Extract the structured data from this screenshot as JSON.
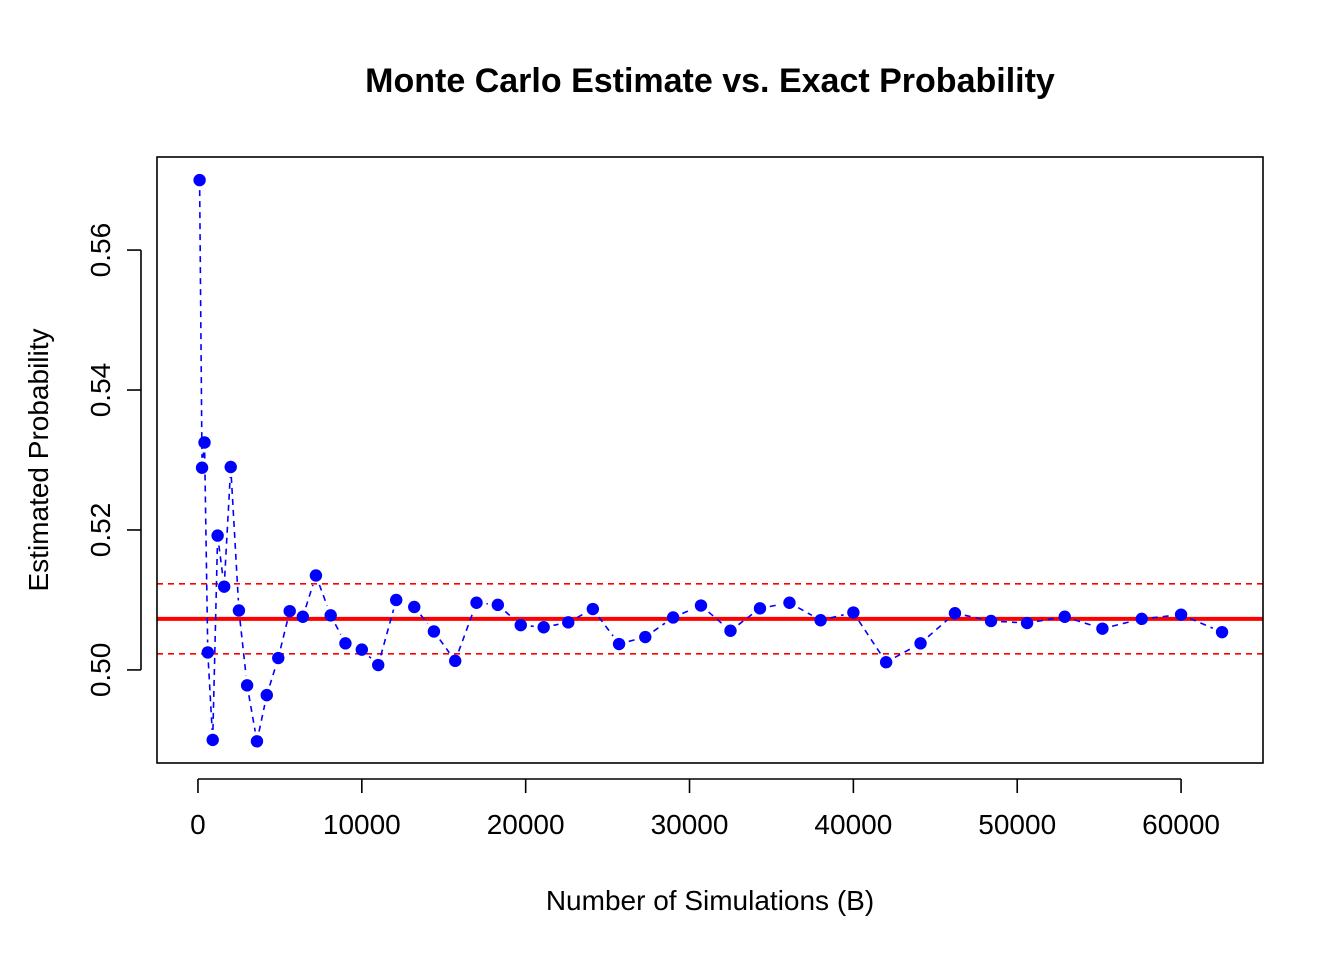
{
  "chart_data": {
    "type": "line",
    "title": "Monte Carlo Estimate vs. Exact Probability",
    "xlabel": "Number of Simulations (B)",
    "ylabel": "Estimated Probability",
    "xlim": [
      -2500,
      65000
    ],
    "ylim": [
      0.4867,
      0.5733
    ],
    "x_ticks": [
      0,
      10000,
      20000,
      30000,
      40000,
      50000,
      60000
    ],
    "y_ticks": [
      0.5,
      0.52,
      0.54,
      0.56
    ],
    "x_tick_labels": [
      "0",
      "10000",
      "20000",
      "30000",
      "40000",
      "50000",
      "60000"
    ],
    "y_tick_labels": [
      "0.50",
      "0.52",
      "0.54",
      "0.56"
    ],
    "grid": false,
    "series": [
      {
        "line_style": "dashed",
        "marker": "filled-circle",
        "color": "#0000ff",
        "x": [
          100,
          250,
          400,
          600,
          900,
          1200,
          1600,
          2000,
          2500,
          3000,
          3600,
          4200,
          4900,
          5600,
          6400,
          7200,
          8100,
          9000,
          10000,
          11000,
          12100,
          13200,
          14400,
          15700,
          17000,
          18300,
          19700,
          21100,
          22600,
          24100,
          25700,
          27300,
          29000,
          30700,
          32500,
          34300,
          36100,
          38000,
          40000,
          42000,
          44100,
          46200,
          48400,
          50600,
          52900,
          55200,
          57600,
          60000,
          62500
        ],
        "y": [
          0.57,
          0.5289,
          0.5325,
          0.5025,
          0.49,
          0.5192,
          0.5119,
          0.529,
          0.5085,
          0.4978,
          0.4898,
          0.4964,
          0.5017,
          0.5084,
          0.5076,
          0.5135,
          0.5078,
          0.5038,
          0.5029,
          0.5007,
          0.51,
          0.509,
          0.5055,
          0.5013,
          0.5096,
          0.5093,
          0.5064,
          0.5061,
          0.5068,
          0.5087,
          0.5037,
          0.5047,
          0.5075,
          0.5092,
          0.5056,
          0.5088,
          0.5096,
          0.5071,
          0.5082,
          0.5011,
          0.5038,
          0.5081,
          0.507,
          0.5067,
          0.5076,
          0.5059,
          0.5073,
          0.5079,
          0.5054
        ]
      }
    ],
    "reference_lines": [
      {
        "y": 0.5073,
        "color": "#ff0000",
        "style": "solid"
      },
      {
        "y": 0.5123,
        "color": "#ff0000",
        "style": "dashed"
      },
      {
        "y": 0.5023,
        "color": "#ff0000",
        "style": "dashed"
      }
    ]
  }
}
